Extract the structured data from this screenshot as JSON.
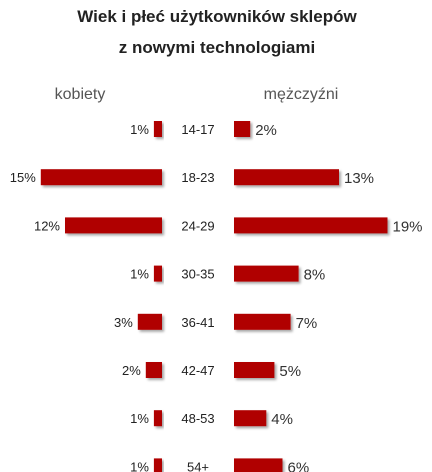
{
  "chart_data": {
    "type": "bar",
    "title": "Wiek i płeć użytkowników sklepów",
    "subtitle": "z nowymi technologiami",
    "categories": [
      "14-17",
      "18-23",
      "24-29",
      "30-35",
      "36-41",
      "42-47",
      "48-53",
      "54+"
    ],
    "series": [
      {
        "name": "kobiety",
        "values": [
          1,
          15,
          12,
          1,
          3,
          2,
          1,
          1
        ],
        "labels": [
          "1%",
          "15%",
          "12%",
          "1%",
          "3%",
          "2%",
          "1%",
          "1%"
        ],
        "color": "#b00000"
      },
      {
        "name": "mężczyźni",
        "values": [
          2,
          13,
          19,
          8,
          7,
          5,
          4,
          6
        ],
        "labels": [
          "2%",
          "13%",
          "19%",
          "8%",
          "7%",
          "5%",
          "4%",
          "6%"
        ],
        "color": "#b00000"
      }
    ],
    "xlim": [
      0,
      20
    ],
    "orientation": "horizontal-butterfly",
    "grid": false,
    "legend": "top"
  }
}
